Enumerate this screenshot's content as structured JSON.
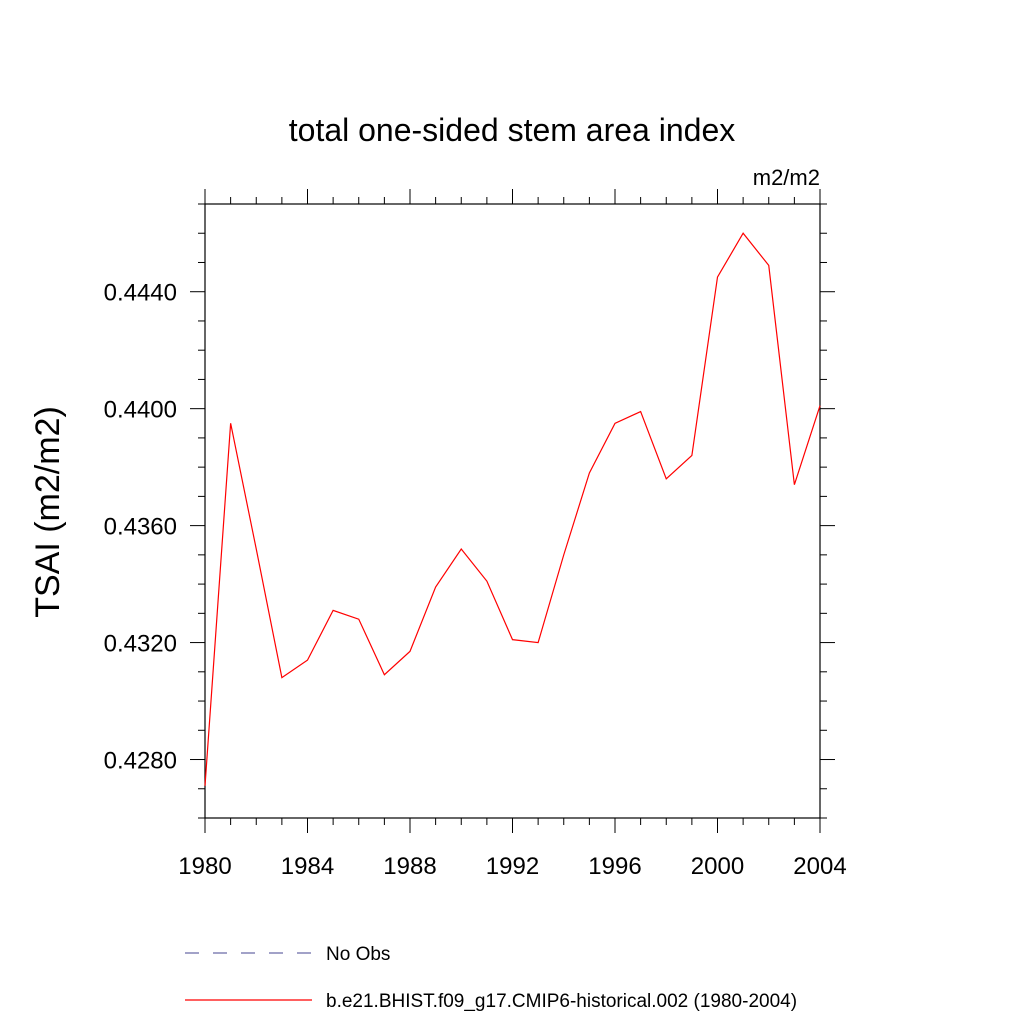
{
  "chart_data": {
    "type": "line",
    "title": "total one-sided stem area index",
    "units": "m2/m2",
    "ylabel": "TSAI  (m2/m2)",
    "xlabel": "",
    "xlim": [
      1980,
      2004
    ],
    "ylim": [
      0.426,
      0.447
    ],
    "x_ticks": [
      1980,
      1984,
      1988,
      1992,
      1996,
      2000,
      2004
    ],
    "x_tick_labels": [
      "1980",
      "1984",
      "1988",
      "1992",
      "1996",
      "2000",
      "2004"
    ],
    "y_ticks": [
      0.428,
      0.432,
      0.436,
      0.44,
      0.444
    ],
    "y_tick_labels": [
      "0.4280",
      "0.4320",
      "0.4360",
      "0.4400",
      "0.4440"
    ],
    "grid": false,
    "legend_position": "bottom",
    "series": [
      {
        "name": "b.e21.BHIST.f09_g17.CMIP6-historical.002 (1980-2004)",
        "color": "#ff0000",
        "dash": "solid",
        "x": [
          1980,
          1981,
          1982,
          1983,
          1984,
          1985,
          1986,
          1987,
          1988,
          1989,
          1990,
          1991,
          1992,
          1993,
          1994,
          1995,
          1996,
          1997,
          1998,
          1999,
          2000,
          2001,
          2002,
          2003,
          2004
        ],
        "y": [
          0.4271,
          0.4395,
          0.4352,
          0.4308,
          0.4314,
          0.4331,
          0.4328,
          0.4309,
          0.4317,
          0.4339,
          0.4352,
          0.4341,
          0.4321,
          0.432,
          0.435,
          0.4378,
          0.4395,
          0.4399,
          0.4376,
          0.4384,
          0.4445,
          0.446,
          0.4449,
          0.4374,
          0.4401
        ]
      }
    ],
    "legend": [
      {
        "label": "No Obs",
        "color": "#6a6aa8",
        "dash": "dashed"
      },
      {
        "label": "b.e21.BHIST.f09_g17.CMIP6-historical.002 (1980-2004)",
        "color": "#ff0000",
        "dash": "solid"
      }
    ]
  }
}
